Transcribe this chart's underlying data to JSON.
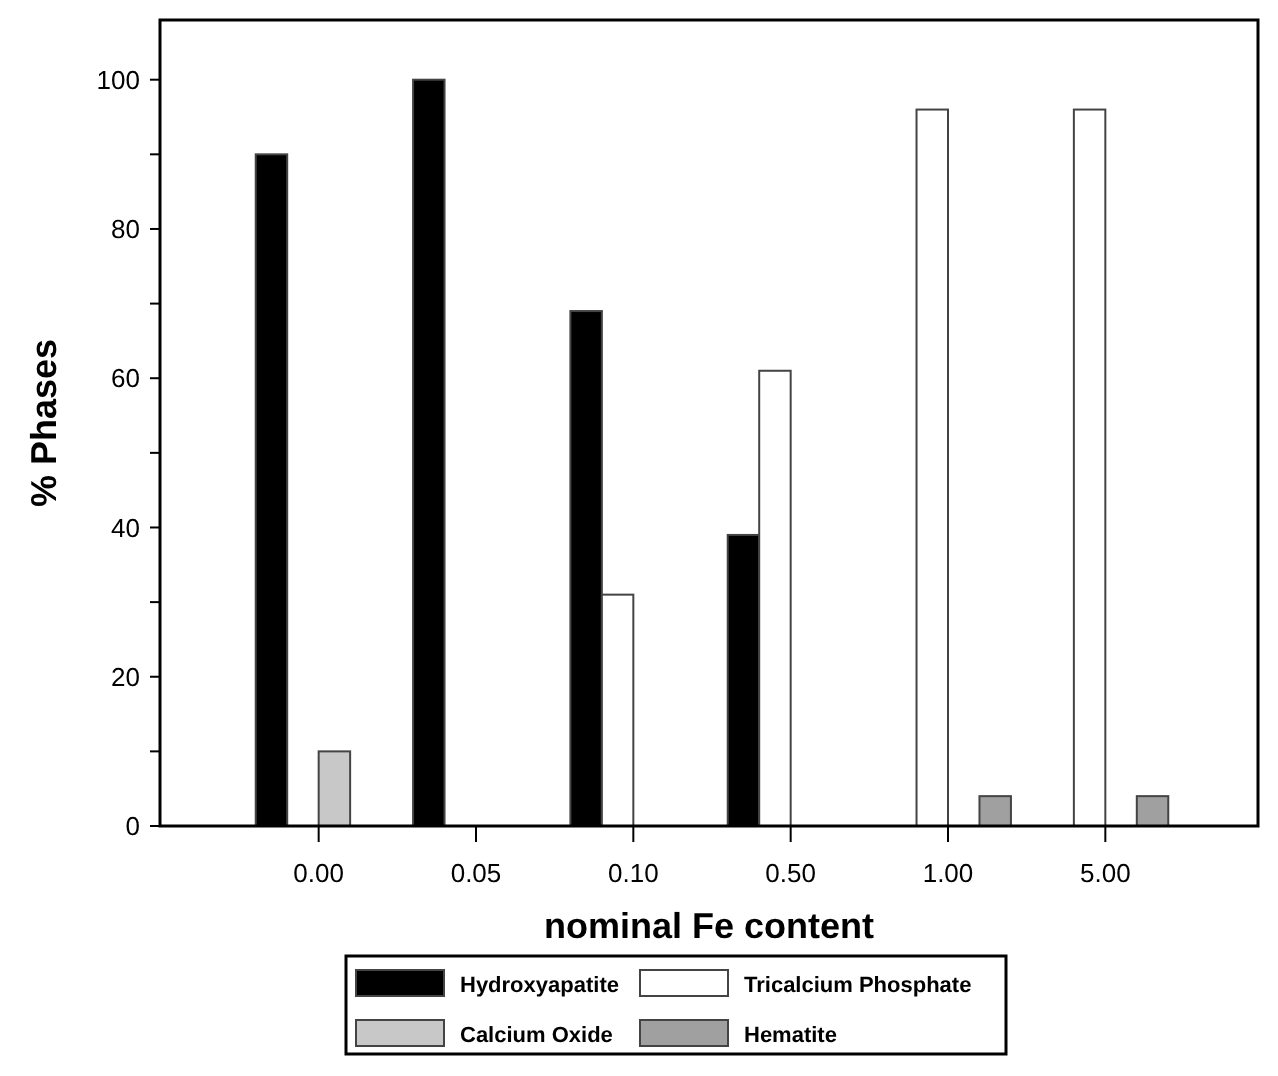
{
  "chart_data": {
    "type": "bar",
    "xlabel": "nominal Fe content",
    "ylabel": "% Phases",
    "categories": [
      "0.00",
      "0.05",
      "0.10",
      "0.50",
      "1.00",
      "5.00"
    ],
    "series": [
      {
        "name": "Hydroxyapatite",
        "color": "#000000",
        "values": [
          90,
          100,
          69,
          39,
          null,
          null
        ]
      },
      {
        "name": "Tricalcium Phosphate",
        "color": "#ffffff",
        "values": [
          null,
          null,
          31,
          61,
          96,
          96
        ]
      },
      {
        "name": "Calcium Oxide",
        "color": "#c8c8c8",
        "values": [
          10,
          null,
          null,
          null,
          null,
          null
        ]
      },
      {
        "name": "Hematite",
        "color": "#a0a0a0",
        "values": [
          null,
          null,
          null,
          null,
          4,
          4
        ]
      }
    ],
    "ylim": [
      0,
      108
    ],
    "yticks": [
      0,
      {
        "value": 10,
        "label": null
      },
      20,
      {
        "value": 30,
        "label": null
      },
      40,
      {
        "value": 50,
        "label": null
      },
      60,
      {
        "value": 70,
        "label": null
      },
      80,
      {
        "value": 90,
        "label": null
      },
      100
    ],
    "grid": false,
    "legend": "bottom"
  }
}
